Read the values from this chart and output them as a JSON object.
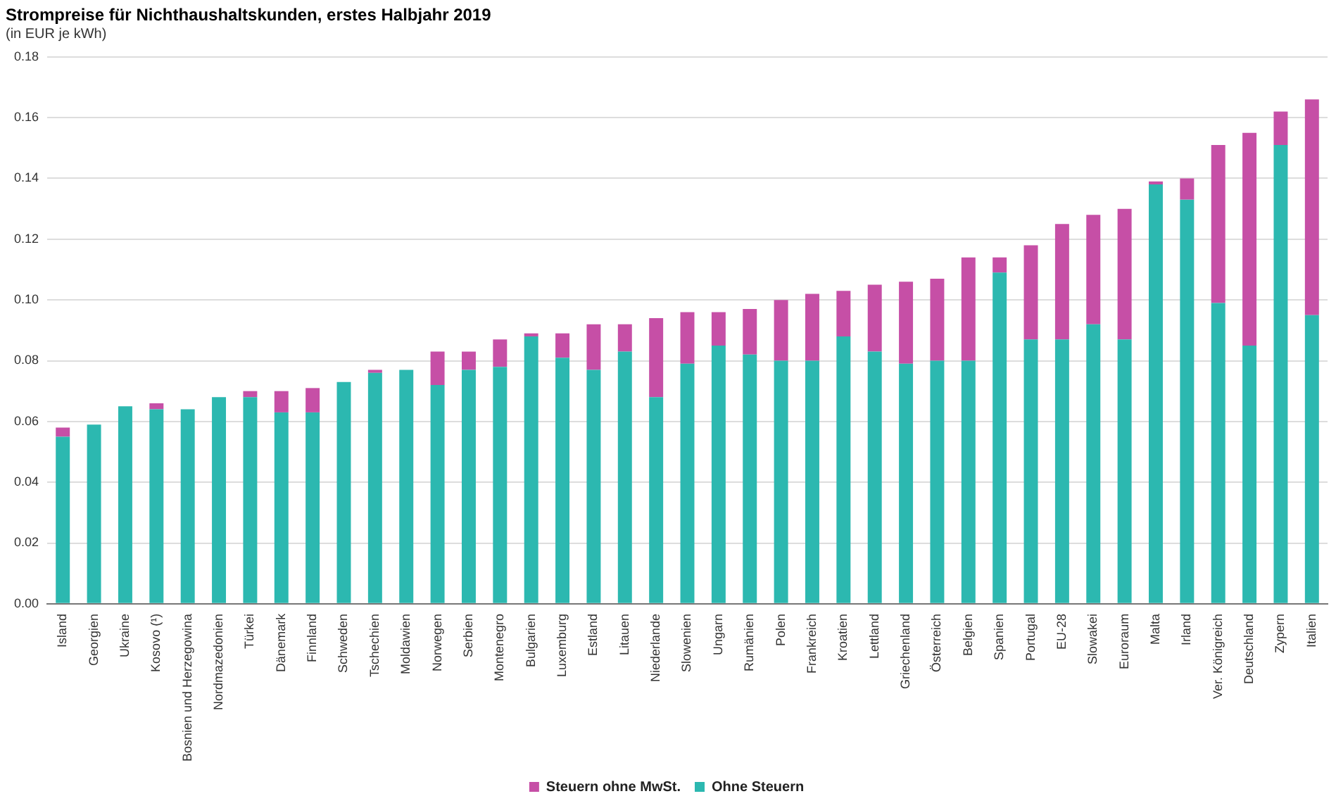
{
  "chart_data": {
    "type": "bar",
    "title": "Strompreise für Nichthaushaltskunden, erstes Halbjahr 2019",
    "subtitle": "(in EUR je kWh)",
    "categories": [
      "Island",
      "Georgien",
      "Ukraine",
      "Kosovo (¹)",
      "Bosnien und Herzegowina",
      "Nordmazedonien",
      "Türkei",
      "Dänemark",
      "Finnland",
      "Schweden",
      "Tschechien",
      "Moldawien",
      "Norwegen",
      "Serbien",
      "Montenegro",
      "Bulgarien",
      "Luxemburg",
      "Estland",
      "Litauen",
      "Niederlande",
      "Slowenien",
      "Ungarn",
      "Rumänien",
      "Polen",
      "Frankreich",
      "Kroatien",
      "Lettland",
      "Griechenland",
      "Österreich",
      "Belgien",
      "Spanien",
      "Portugal",
      "EU-28",
      "Slowakei",
      "Euroraum",
      "Malta",
      "Irland",
      "Ver. Königreich",
      "Deutschland",
      "Zypern",
      "Italien"
    ],
    "series": [
      {
        "name": "Ohne Steuern",
        "color": "#2cb8b0",
        "values": [
          0.055,
          0.059,
          0.065,
          0.064,
          0.064,
          0.068,
          0.068,
          0.063,
          0.063,
          0.073,
          0.076,
          0.077,
          0.072,
          0.077,
          0.078,
          0.088,
          0.081,
          0.077,
          0.083,
          0.068,
          0.079,
          0.085,
          0.082,
          0.08,
          0.08,
          0.088,
          0.083,
          0.079,
          0.08,
          0.08,
          0.109,
          0.087,
          0.087,
          0.092,
          0.087,
          0.138,
          0.133,
          0.099,
          0.085,
          0.151,
          0.095
        ]
      },
      {
        "name": "Steuern ohne MwSt.",
        "color": "#c64fa6",
        "values": [
          0.003,
          0,
          0,
          0.002,
          0,
          0,
          0.002,
          0.007,
          0.008,
          0,
          0.001,
          0,
          0.011,
          0.006,
          0.009,
          0.001,
          0.008,
          0.015,
          0.009,
          0.026,
          0.017,
          0.011,
          0.015,
          0.02,
          0.022,
          0.015,
          0.022,
          0.027,
          0.027,
          0.034,
          0.005,
          0.031,
          0.038,
          0.036,
          0.043,
          0.001,
          0.007,
          0.052,
          0.07,
          0.011,
          0.071
        ]
      }
    ],
    "stacked": true,
    "ylim": [
      0,
      0.18
    ],
    "yticks": [
      {
        "value": 0,
        "label": "0.00"
      },
      {
        "value": 0.02,
        "label": "0.02"
      },
      {
        "value": 0.04,
        "label": "0.04"
      },
      {
        "value": 0.06,
        "label": "0.06"
      },
      {
        "value": 0.08,
        "label": "0.08"
      },
      {
        "value": 0.1,
        "label": "0.10"
      },
      {
        "value": 0.12,
        "label": "0.12"
      },
      {
        "value": 0.14,
        "label": "0.14"
      },
      {
        "value": 0.16,
        "label": "0.16"
      },
      {
        "value": 0.18,
        "label": "0.18"
      }
    ],
    "grid": "y",
    "legend": "bottom"
  }
}
